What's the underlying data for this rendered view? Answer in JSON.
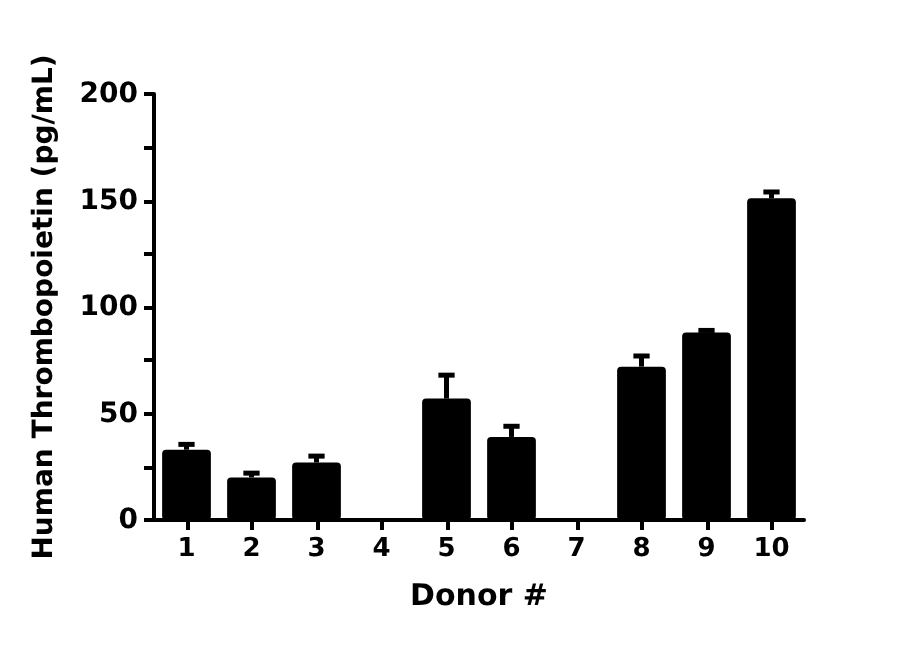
{
  "chart_data": {
    "type": "bar",
    "xlabel": "Donor #",
    "ylabel": "Human Thrombopoietin (pg/mL)",
    "categories": [
      "1",
      "2",
      "3",
      "4",
      "5",
      "6",
      "7",
      "8",
      "9",
      "10"
    ],
    "values": [
      33,
      20,
      27,
      null,
      57,
      39,
      null,
      72,
      88,
      151
    ],
    "errors": [
      [
        33,
        35.5
      ],
      [
        20,
        22
      ],
      [
        27,
        30
      ],
      null,
      [
        57,
        68
      ],
      [
        39,
        44
      ],
      null,
      [
        72,
        77
      ],
      [
        88,
        89
      ],
      [
        151,
        154
      ]
    ],
    "color": "#000000",
    "ylim": [
      0,
      200
    ],
    "yticks": [
      0,
      {
        "value": 25,
        "label": null
      },
      50,
      {
        "value": 75,
        "label": null
      },
      100,
      {
        "value": 125,
        "label": null
      },
      150,
      {
        "value": 175,
        "label": null
      },
      200
    ],
    "grid": false
  }
}
